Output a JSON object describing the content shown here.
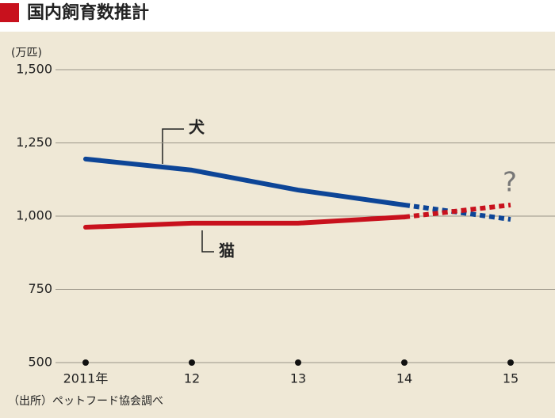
{
  "chart_data": {
    "type": "line",
    "title": "国内飼育数推計",
    "unit_label": "(万匹)",
    "categories": [
      "2011年",
      "12",
      "13",
      "14",
      "15"
    ],
    "series": [
      {
        "name": "犬",
        "color": "#0d4597",
        "values": [
          1195,
          1157,
          1089,
          1038,
          989
        ]
      },
      {
        "name": "猫",
        "color": "#c8111d",
        "values": [
          962,
          976,
          976,
          997,
          1038
        ]
      }
    ],
    "dashed_from_index": 3,
    "annotation": "?",
    "ylim": [
      500,
      1500
    ],
    "yticks": [
      {
        "value": 500,
        "label": "500"
      },
      {
        "value": 750,
        "label": "750"
      },
      {
        "value": 1000,
        "label": "1,000"
      },
      {
        "value": 1250,
        "label": "1,250"
      },
      {
        "value": 1500,
        "label": "1,500"
      }
    ],
    "grid": true,
    "source": "（出所）ペットフード協会調べ"
  }
}
